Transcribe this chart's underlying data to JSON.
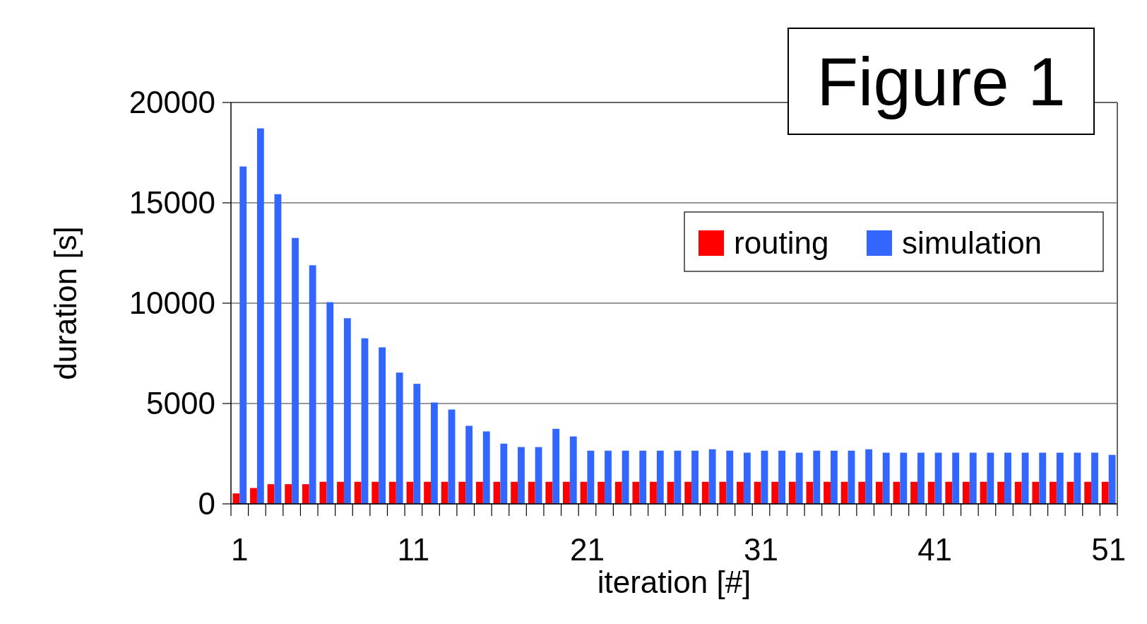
{
  "chart_data": {
    "type": "bar",
    "title": "Figure 1",
    "xlabel": "iteration [#]",
    "ylabel": "duration [s]",
    "categories": [
      "1",
      null,
      null,
      null,
      null,
      null,
      null,
      null,
      null,
      null,
      "11",
      null,
      null,
      null,
      null,
      null,
      null,
      null,
      null,
      null,
      "21",
      null,
      null,
      null,
      null,
      null,
      null,
      null,
      null,
      null,
      "31",
      null,
      null,
      null,
      null,
      null,
      null,
      null,
      null,
      null,
      "41",
      null,
      null,
      null,
      null,
      null,
      null,
      null,
      null,
      null,
      "51"
    ],
    "series": [
      {
        "name": "routing",
        "color": "#ff0000",
        "values": [
          520,
          790,
          980,
          980,
          980,
          1100,
          1100,
          1100,
          1100,
          1100,
          1100,
          1100,
          1100,
          1100,
          1100,
          1100,
          1100,
          1100,
          1100,
          1100,
          1100,
          1100,
          1100,
          1100,
          1100,
          1100,
          1100,
          1100,
          1100,
          1100,
          1100,
          1100,
          1100,
          1100,
          1100,
          1100,
          1100,
          1100,
          1100,
          1100,
          1100,
          1100,
          1100,
          1100,
          1100,
          1100,
          1100,
          1100,
          1100,
          1100,
          1100
        ]
      },
      {
        "name": "simulation",
        "color": "#3366ff",
        "values": [
          16810,
          18710,
          15430,
          13250,
          11890,
          10050,
          9250,
          8250,
          7800,
          6540,
          5980,
          5050,
          4700,
          3890,
          3610,
          3000,
          2830,
          2830,
          3740,
          3360,
          2650,
          2650,
          2650,
          2650,
          2650,
          2650,
          2650,
          2720,
          2650,
          2550,
          2650,
          2650,
          2550,
          2650,
          2650,
          2650,
          2720,
          2550,
          2550,
          2550,
          2550,
          2550,
          2550,
          2550,
          2550,
          2550,
          2550,
          2550,
          2550,
          2550,
          2440
        ]
      }
    ],
    "ylim": [
      0,
      20000
    ],
    "yticks": [
      0,
      5000,
      10000,
      15000,
      20000
    ],
    "grid": "y",
    "legend": "top right"
  }
}
